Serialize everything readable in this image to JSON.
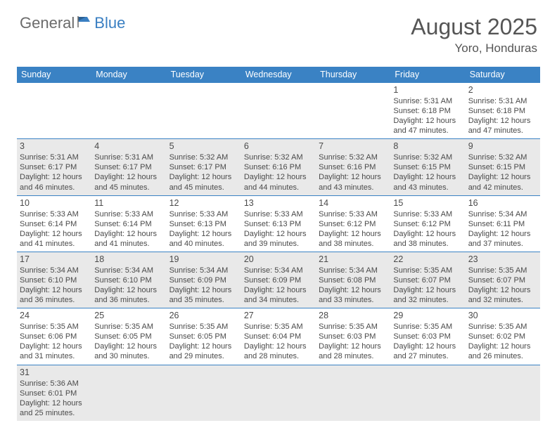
{
  "logo": {
    "text1": "General",
    "text2": "Blue"
  },
  "title": "August 2025",
  "location": "Yoro, Honduras",
  "colors": {
    "header_bg": "#3a82c4",
    "header_text": "#ffffff",
    "alt_row_bg": "#e9e9e9",
    "text": "#4a4a4a",
    "logo_gray": "#6b6b6b",
    "logo_blue": "#3a7fc2"
  },
  "day_headers": [
    "Sunday",
    "Monday",
    "Tuesday",
    "Wednesday",
    "Thursday",
    "Friday",
    "Saturday"
  ],
  "weeks": [
    [
      {
        "empty": true
      },
      {
        "empty": true
      },
      {
        "empty": true
      },
      {
        "empty": true
      },
      {
        "empty": true
      },
      {
        "n": "1",
        "sr": "Sunrise: 5:31 AM",
        "ss": "Sunset: 6:18 PM",
        "dl1": "Daylight: 12 hours",
        "dl2": "and 47 minutes."
      },
      {
        "n": "2",
        "sr": "Sunrise: 5:31 AM",
        "ss": "Sunset: 6:18 PM",
        "dl1": "Daylight: 12 hours",
        "dl2": "and 47 minutes."
      }
    ],
    [
      {
        "n": "3",
        "sr": "Sunrise: 5:31 AM",
        "ss": "Sunset: 6:17 PM",
        "dl1": "Daylight: 12 hours",
        "dl2": "and 46 minutes."
      },
      {
        "n": "4",
        "sr": "Sunrise: 5:31 AM",
        "ss": "Sunset: 6:17 PM",
        "dl1": "Daylight: 12 hours",
        "dl2": "and 45 minutes."
      },
      {
        "n": "5",
        "sr": "Sunrise: 5:32 AM",
        "ss": "Sunset: 6:17 PM",
        "dl1": "Daylight: 12 hours",
        "dl2": "and 45 minutes."
      },
      {
        "n": "6",
        "sr": "Sunrise: 5:32 AM",
        "ss": "Sunset: 6:16 PM",
        "dl1": "Daylight: 12 hours",
        "dl2": "and 44 minutes."
      },
      {
        "n": "7",
        "sr": "Sunrise: 5:32 AM",
        "ss": "Sunset: 6:16 PM",
        "dl1": "Daylight: 12 hours",
        "dl2": "and 43 minutes."
      },
      {
        "n": "8",
        "sr": "Sunrise: 5:32 AM",
        "ss": "Sunset: 6:15 PM",
        "dl1": "Daylight: 12 hours",
        "dl2": "and 43 minutes."
      },
      {
        "n": "9",
        "sr": "Sunrise: 5:32 AM",
        "ss": "Sunset: 6:15 PM",
        "dl1": "Daylight: 12 hours",
        "dl2": "and 42 minutes."
      }
    ],
    [
      {
        "n": "10",
        "sr": "Sunrise: 5:33 AM",
        "ss": "Sunset: 6:14 PM",
        "dl1": "Daylight: 12 hours",
        "dl2": "and 41 minutes."
      },
      {
        "n": "11",
        "sr": "Sunrise: 5:33 AM",
        "ss": "Sunset: 6:14 PM",
        "dl1": "Daylight: 12 hours",
        "dl2": "and 41 minutes."
      },
      {
        "n": "12",
        "sr": "Sunrise: 5:33 AM",
        "ss": "Sunset: 6:13 PM",
        "dl1": "Daylight: 12 hours",
        "dl2": "and 40 minutes."
      },
      {
        "n": "13",
        "sr": "Sunrise: 5:33 AM",
        "ss": "Sunset: 6:13 PM",
        "dl1": "Daylight: 12 hours",
        "dl2": "and 39 minutes."
      },
      {
        "n": "14",
        "sr": "Sunrise: 5:33 AM",
        "ss": "Sunset: 6:12 PM",
        "dl1": "Daylight: 12 hours",
        "dl2": "and 38 minutes."
      },
      {
        "n": "15",
        "sr": "Sunrise: 5:33 AM",
        "ss": "Sunset: 6:12 PM",
        "dl1": "Daylight: 12 hours",
        "dl2": "and 38 minutes."
      },
      {
        "n": "16",
        "sr": "Sunrise: 5:34 AM",
        "ss": "Sunset: 6:11 PM",
        "dl1": "Daylight: 12 hours",
        "dl2": "and 37 minutes."
      }
    ],
    [
      {
        "n": "17",
        "sr": "Sunrise: 5:34 AM",
        "ss": "Sunset: 6:10 PM",
        "dl1": "Daylight: 12 hours",
        "dl2": "and 36 minutes."
      },
      {
        "n": "18",
        "sr": "Sunrise: 5:34 AM",
        "ss": "Sunset: 6:10 PM",
        "dl1": "Daylight: 12 hours",
        "dl2": "and 36 minutes."
      },
      {
        "n": "19",
        "sr": "Sunrise: 5:34 AM",
        "ss": "Sunset: 6:09 PM",
        "dl1": "Daylight: 12 hours",
        "dl2": "and 35 minutes."
      },
      {
        "n": "20",
        "sr": "Sunrise: 5:34 AM",
        "ss": "Sunset: 6:09 PM",
        "dl1": "Daylight: 12 hours",
        "dl2": "and 34 minutes."
      },
      {
        "n": "21",
        "sr": "Sunrise: 5:34 AM",
        "ss": "Sunset: 6:08 PM",
        "dl1": "Daylight: 12 hours",
        "dl2": "and 33 minutes."
      },
      {
        "n": "22",
        "sr": "Sunrise: 5:35 AM",
        "ss": "Sunset: 6:07 PM",
        "dl1": "Daylight: 12 hours",
        "dl2": "and 32 minutes."
      },
      {
        "n": "23",
        "sr": "Sunrise: 5:35 AM",
        "ss": "Sunset: 6:07 PM",
        "dl1": "Daylight: 12 hours",
        "dl2": "and 32 minutes."
      }
    ],
    [
      {
        "n": "24",
        "sr": "Sunrise: 5:35 AM",
        "ss": "Sunset: 6:06 PM",
        "dl1": "Daylight: 12 hours",
        "dl2": "and 31 minutes."
      },
      {
        "n": "25",
        "sr": "Sunrise: 5:35 AM",
        "ss": "Sunset: 6:05 PM",
        "dl1": "Daylight: 12 hours",
        "dl2": "and 30 minutes."
      },
      {
        "n": "26",
        "sr": "Sunrise: 5:35 AM",
        "ss": "Sunset: 6:05 PM",
        "dl1": "Daylight: 12 hours",
        "dl2": "and 29 minutes."
      },
      {
        "n": "27",
        "sr": "Sunrise: 5:35 AM",
        "ss": "Sunset: 6:04 PM",
        "dl1": "Daylight: 12 hours",
        "dl2": "and 28 minutes."
      },
      {
        "n": "28",
        "sr": "Sunrise: 5:35 AM",
        "ss": "Sunset: 6:03 PM",
        "dl1": "Daylight: 12 hours",
        "dl2": "and 28 minutes."
      },
      {
        "n": "29",
        "sr": "Sunrise: 5:35 AM",
        "ss": "Sunset: 6:03 PM",
        "dl1": "Daylight: 12 hours",
        "dl2": "and 27 minutes."
      },
      {
        "n": "30",
        "sr": "Sunrise: 5:35 AM",
        "ss": "Sunset: 6:02 PM",
        "dl1": "Daylight: 12 hours",
        "dl2": "and 26 minutes."
      }
    ],
    [
      {
        "n": "31",
        "sr": "Sunrise: 5:36 AM",
        "ss": "Sunset: 6:01 PM",
        "dl1": "Daylight: 12 hours",
        "dl2": "and 25 minutes."
      },
      {
        "empty": true
      },
      {
        "empty": true
      },
      {
        "empty": true
      },
      {
        "empty": true
      },
      {
        "empty": true
      },
      {
        "empty": true
      }
    ]
  ]
}
